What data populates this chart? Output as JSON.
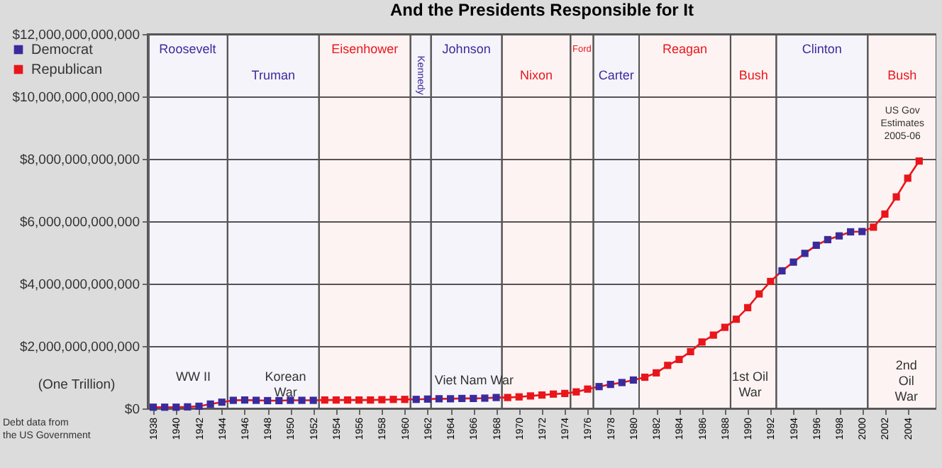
{
  "chart_data": {
    "type": "line",
    "title": "And the Presidents Responsible for It",
    "x": [
      1938,
      1939,
      1940,
      1941,
      1942,
      1943,
      1944,
      1945,
      1946,
      1947,
      1948,
      1949,
      1950,
      1951,
      1952,
      1953,
      1954,
      1955,
      1956,
      1957,
      1958,
      1959,
      1960,
      1961,
      1962,
      1963,
      1964,
      1965,
      1966,
      1967,
      1968,
      1969,
      1970,
      1971,
      1972,
      1973,
      1974,
      1975,
      1976,
      1977,
      1978,
      1979,
      1980,
      1981,
      1982,
      1983,
      1984,
      1985,
      1986,
      1987,
      1988,
      1989,
      1990,
      1991,
      1992,
      1993,
      1994,
      1995,
      1996,
      1997,
      1998,
      1999,
      2000,
      2001,
      2002,
      2003,
      2004,
      2005
    ],
    "series": [
      {
        "type": "line",
        "color": "#e8161b",
        "marker": "none",
        "values": [
          40000000000,
          40000000000,
          40000000000,
          50000000000,
          70000000000,
          140000000000,
          200000000000,
          260000000000,
          270000000000,
          260000000000,
          250000000000,
          250000000000,
          260000000000,
          260000000000,
          260000000000,
          270000000000,
          270000000000,
          270000000000,
          270000000000,
          270000000000,
          280000000000,
          290000000000,
          290000000000,
          290000000000,
          300000000000,
          310000000000,
          310000000000,
          320000000000,
          320000000000,
          330000000000,
          350000000000,
          350000000000,
          370000000000,
          400000000000,
          430000000000,
          460000000000,
          480000000000,
          530000000000,
          620000000000,
          700000000000,
          770000000000,
          830000000000,
          910000000000,
          1000000000000,
          1140000000000,
          1380000000000,
          1570000000000,
          1820000000000,
          2130000000000,
          2350000000000,
          2600000000000,
          2860000000000,
          3230000000000,
          3670000000000,
          4070000000000,
          4410000000000,
          4690000000000,
          4970000000000,
          5230000000000,
          5410000000000,
          5530000000000,
          5660000000000,
          5670000000000,
          5810000000000,
          6230000000000,
          6780000000000,
          7380000000000,
          7930000000000
        ]
      },
      {
        "type": "scatter",
        "name": "Democrat",
        "color": "#3a2b9c",
        "marker": "square",
        "values": [
          40000000000,
          40000000000,
          40000000000,
          50000000000,
          70000000000,
          140000000000,
          200000000000,
          260000000000,
          270000000000,
          260000000000,
          250000000000,
          250000000000,
          260000000000,
          260000000000,
          260000000000,
          null,
          null,
          null,
          null,
          null,
          null,
          null,
          null,
          290000000000,
          300000000000,
          310000000000,
          310000000000,
          320000000000,
          320000000000,
          330000000000,
          350000000000,
          null,
          null,
          null,
          null,
          null,
          null,
          null,
          null,
          700000000000,
          770000000000,
          830000000000,
          910000000000,
          null,
          null,
          null,
          null,
          null,
          null,
          null,
          null,
          null,
          null,
          null,
          null,
          4410000000000,
          4690000000000,
          4970000000000,
          5230000000000,
          5410000000000,
          5530000000000,
          5660000000000,
          5670000000000,
          null,
          null,
          null,
          null,
          null
        ]
      },
      {
        "type": "scatter",
        "name": "Republican",
        "color": "#e8161b",
        "marker": "square",
        "values": [
          null,
          null,
          null,
          null,
          null,
          null,
          null,
          null,
          null,
          null,
          null,
          null,
          null,
          null,
          null,
          270000000000,
          270000000000,
          270000000000,
          270000000000,
          270000000000,
          280000000000,
          290000000000,
          290000000000,
          null,
          null,
          null,
          null,
          null,
          null,
          null,
          null,
          350000000000,
          370000000000,
          400000000000,
          430000000000,
          460000000000,
          480000000000,
          530000000000,
          620000000000,
          null,
          null,
          null,
          null,
          1000000000000,
          1140000000000,
          1380000000000,
          1570000000000,
          1820000000000,
          2130000000000,
          2350000000000,
          2600000000000,
          2860000000000,
          3230000000000,
          3670000000000,
          4070000000000,
          null,
          null,
          null,
          null,
          null,
          null,
          null,
          null,
          5810000000000,
          6230000000000,
          6780000000000,
          7380000000000,
          7930000000000
        ]
      }
    ],
    "xlim": [
      1937.5,
      2006.5
    ],
    "xticks": [
      1938,
      1940,
      1942,
      1944,
      1946,
      1948,
      1950,
      1952,
      1954,
      1956,
      1958,
      1960,
      1962,
      1964,
      1966,
      1968,
      1970,
      1972,
      1974,
      1976,
      1978,
      1980,
      1982,
      1984,
      1986,
      1988,
      1990,
      1992,
      1994,
      1996,
      1998,
      2000,
      2002,
      2004
    ],
    "ylim": [
      0,
      12000000000000
    ],
    "yticks": [
      {
        "value": 0,
        "label": "$0"
      },
      {
        "value": 2000000000000,
        "label": "$2,000,000,000,000"
      },
      {
        "value": 4000000000000,
        "label": "$4,000,000,000,000"
      },
      {
        "value": 6000000000000,
        "label": "$6,000,000,000,000"
      },
      {
        "value": 8000000000000,
        "label": "$8,000,000,000,000"
      },
      {
        "value": 10000000000000,
        "label": "$10,000,000,000,000"
      },
      {
        "value": 12000000000000,
        "label": "$12,000,000,000,000"
      }
    ],
    "grid": "y",
    "legend": "top left",
    "bands": [
      {
        "axis": "x",
        "from": 1937.5,
        "to": 1944.5,
        "label": "Roosevelt",
        "color": "#3a2b9c"
      },
      {
        "axis": "x",
        "from": 1944.5,
        "to": 1952.5,
        "label": "Truman",
        "color": "#3a2b9c"
      },
      {
        "axis": "x",
        "from": 1952.5,
        "to": 1960.5,
        "label": "Eisenhower",
        "color": "#e8161b"
      },
      {
        "axis": "x",
        "from": 1960.5,
        "to": 1962.3,
        "label": "Kennedy",
        "color": "#3a2b9c"
      },
      {
        "axis": "x",
        "from": 1962.3,
        "to": 1968.5,
        "label": "Johnson",
        "color": "#3a2b9c"
      },
      {
        "axis": "x",
        "from": 1968.5,
        "to": 1974.5,
        "label": "Nixon",
        "color": "#e8161b"
      },
      {
        "axis": "x",
        "from": 1974.5,
        "to": 1976.5,
        "label": "Ford",
        "color": "#e8161b"
      },
      {
        "axis": "x",
        "from": 1976.5,
        "to": 1980.5,
        "label": "Carter",
        "color": "#3a2b9c"
      },
      {
        "axis": "x",
        "from": 1980.5,
        "to": 1988.5,
        "label": "Reagan",
        "color": "#e8161b"
      },
      {
        "axis": "x",
        "from": 1988.5,
        "to": 1992.5,
        "label": "Bush",
        "color": "#e8161b"
      },
      {
        "axis": "x",
        "from": 1992.5,
        "to": 2000.5,
        "label": "Clinton",
        "color": "#3a2b9c"
      },
      {
        "axis": "x",
        "from": 2000.5,
        "to": 2006.5,
        "label": "Bush",
        "color": "#e8161b"
      }
    ],
    "annotations": [
      "WW II",
      "Korean\nWar",
      "Viet Nam War",
      "1st Oil\nWar",
      "2nd\nOil\nWar",
      "US Gov\nEstimates\n2005-06",
      "(One Trillion)",
      "Debt data from\nthe US Government"
    ]
  }
}
